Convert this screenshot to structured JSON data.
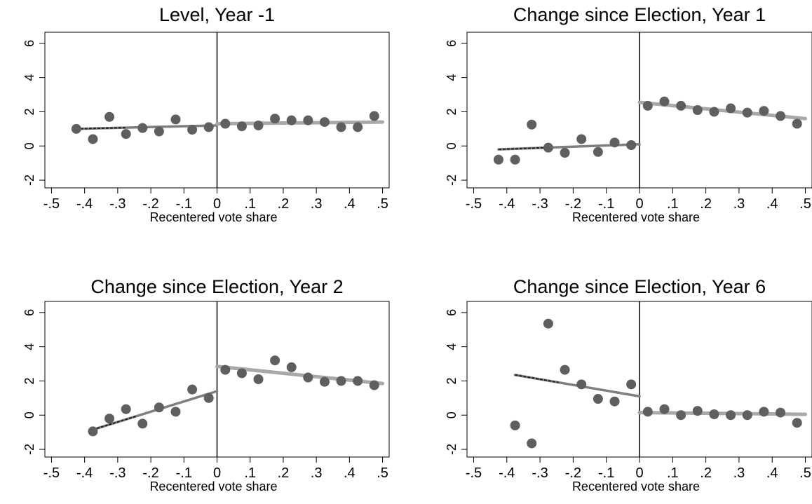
{
  "chart_data": [
    {
      "type": "scatter",
      "title": "Level, Year -1",
      "xlabel": "Recentered vote share",
      "ylabel": "",
      "xlim": [
        -0.5,
        0.5
      ],
      "ylim": [
        -2,
        6
      ],
      "xticks": [
        "-.5",
        "-.4",
        "-.3",
        "-.2",
        "-.1",
        "0",
        ".1",
        ".2",
        ".3",
        ".4",
        ".5"
      ],
      "yticks": [
        "-2",
        "0",
        "2",
        "4",
        "6"
      ],
      "cutoff": 0,
      "points": {
        "x": [
          -0.425,
          -0.375,
          -0.325,
          -0.275,
          -0.225,
          -0.175,
          -0.125,
          -0.075,
          -0.025,
          0.025,
          0.075,
          0.125,
          0.175,
          0.225,
          0.275,
          0.325,
          0.375,
          0.425,
          0.475
        ],
        "y": [
          1.0,
          0.4,
          1.7,
          0.7,
          1.05,
          0.85,
          1.55,
          0.95,
          1.1,
          1.3,
          1.15,
          1.2,
          1.6,
          1.5,
          1.5,
          1.4,
          1.1,
          1.1,
          1.75
        ]
      },
      "fit_left": {
        "x": [
          -0.425,
          0
        ],
        "y": [
          1.0,
          1.2
        ]
      },
      "fit_right": {
        "x": [
          0,
          0.5
        ],
        "y": [
          1.3,
          1.4
        ]
      }
    },
    {
      "type": "scatter",
      "title": "Change since Election, Year 1",
      "xlabel": "Recentered vote share",
      "ylabel": "",
      "xlim": [
        -0.5,
        0.5
      ],
      "ylim": [
        -2,
        6
      ],
      "xticks": [
        "-.5",
        "-.4",
        "-.3",
        "-.2",
        "-.1",
        "0",
        ".1",
        ".2",
        ".3",
        ".4",
        ".5"
      ],
      "yticks": [
        "-2",
        "0",
        "2",
        "4",
        "6"
      ],
      "cutoff": 0,
      "points": {
        "x": [
          -0.425,
          -0.375,
          -0.325,
          -0.275,
          -0.225,
          -0.175,
          -0.125,
          -0.075,
          -0.025,
          0.025,
          0.075,
          0.125,
          0.175,
          0.225,
          0.275,
          0.325,
          0.375,
          0.425,
          0.475
        ],
        "y": [
          -0.8,
          -0.8,
          1.25,
          -0.1,
          -0.4,
          0.4,
          -0.35,
          0.2,
          0.05,
          2.35,
          2.6,
          2.35,
          2.1,
          2.0,
          2.2,
          1.95,
          2.05,
          1.75,
          1.3
        ]
      },
      "fit_left": {
        "x": [
          -0.425,
          0
        ],
        "y": [
          -0.2,
          0.1
        ]
      },
      "fit_right": {
        "x": [
          0,
          0.5
        ],
        "y": [
          2.55,
          1.6
        ]
      }
    },
    {
      "type": "scatter",
      "title": "Change since Election, Year 2",
      "xlabel": "Recentered vote share",
      "ylabel": "",
      "xlim": [
        -0.5,
        0.5
      ],
      "ylim": [
        -2,
        6
      ],
      "xticks": [
        "-.5",
        "-.4",
        "-.3",
        "-.2",
        "-.1",
        "0",
        ".1",
        ".2",
        ".3",
        ".4",
        ".5"
      ],
      "yticks": [
        "-2",
        "0",
        "2",
        "4",
        "6"
      ],
      "cutoff": 0,
      "points": {
        "x": [
          -0.375,
          -0.325,
          -0.275,
          -0.225,
          -0.175,
          -0.125,
          -0.075,
          -0.025,
          0.025,
          0.075,
          0.125,
          0.175,
          0.225,
          0.275,
          0.325,
          0.375,
          0.425,
          0.475
        ],
        "y": [
          -0.95,
          -0.2,
          0.35,
          -0.5,
          0.45,
          0.2,
          1.5,
          1.0,
          2.65,
          2.45,
          2.1,
          3.2,
          2.8,
          2.2,
          1.95,
          2.0,
          2.0,
          1.75
        ]
      },
      "fit_left": {
        "x": [
          -0.375,
          0
        ],
        "y": [
          -0.85,
          1.4
        ]
      },
      "fit_right": {
        "x": [
          0,
          0.5
        ],
        "y": [
          2.85,
          1.85
        ]
      }
    },
    {
      "type": "scatter",
      "title": "Change since Election, Year 6",
      "xlabel": "Recentered vote share",
      "ylabel": "",
      "xlim": [
        -0.5,
        0.5
      ],
      "ylim": [
        -2,
        6
      ],
      "xticks": [
        "-.5",
        "-.4",
        "-.3",
        "-.2",
        "-.1",
        "0",
        ".1",
        ".2",
        ".3",
        ".4",
        ".5"
      ],
      "yticks": [
        "-2",
        "0",
        "2",
        "4",
        "6"
      ],
      "cutoff": 0,
      "points": {
        "x": [
          -0.375,
          -0.325,
          -0.275,
          -0.225,
          -0.175,
          -0.125,
          -0.075,
          -0.025,
          0.025,
          0.075,
          0.125,
          0.175,
          0.225,
          0.275,
          0.325,
          0.375,
          0.425,
          0.475
        ],
        "y": [
          -0.6,
          -1.65,
          5.35,
          2.65,
          1.8,
          0.95,
          0.8,
          1.8,
          0.2,
          0.35,
          0.0,
          0.25,
          0.05,
          0.0,
          0.0,
          0.2,
          0.15,
          -0.45
        ]
      },
      "fit_left": {
        "x": [
          -0.375,
          0
        ],
        "y": [
          2.35,
          1.1
        ]
      },
      "fit_right": {
        "x": [
          0,
          0.5
        ],
        "y": [
          0.15,
          0.05
        ]
      }
    }
  ],
  "colors": {
    "marker": "#5f5f5f",
    "fit_left_outer": "#222222",
    "fit_left_inner": "#7f7f7f",
    "fit_right": "#a8a8a8",
    "frame": "#000000",
    "background": "#ffffff"
  }
}
